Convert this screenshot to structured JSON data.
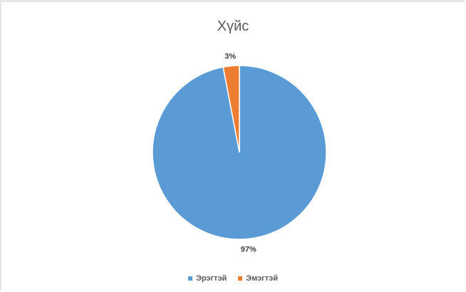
{
  "chart_data": {
    "type": "pie",
    "title": "Хүйс",
    "categories": [
      "Эрэгтэй",
      "Эмэгтэй"
    ],
    "values": [
      97,
      3
    ],
    "data_labels": [
      "97%",
      "3%"
    ],
    "colors": [
      "#5b9bd5",
      "#ed7d31"
    ],
    "legend_placement": "bottom"
  }
}
